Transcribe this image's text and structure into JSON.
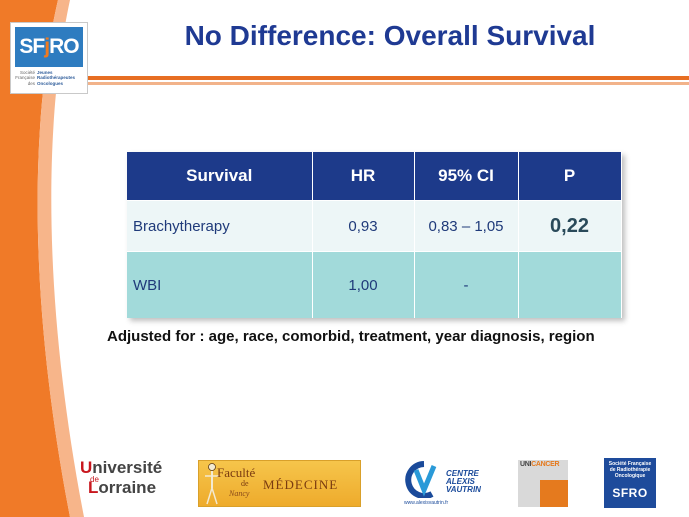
{
  "header": {
    "title": "No Difference: Overall Survival",
    "logo": {
      "name": "SFjRO",
      "prefix": "SF",
      "j": "j",
      "suffix": "RO",
      "sub_left": [
        "Société",
        "Française",
        "des"
      ],
      "sub_right": [
        "Jeunes",
        "Radiothérapeutes",
        "Oncologues"
      ]
    }
  },
  "table": {
    "headers": [
      "Survival",
      "HR",
      "95% CI",
      "P"
    ],
    "rows": [
      {
        "label": "Brachytherapy",
        "hr": "0,93",
        "ci": "0,83 – 1,05",
        "p": "0,22"
      },
      {
        "label": "WBI",
        "hr": "1,00",
        "ci": "-",
        "p": ""
      }
    ]
  },
  "note": "Adjusted for : age, race, comorbid, treatment, year diagnosis, region",
  "footer": {
    "universite": {
      "u": "U",
      "l1": "niversité",
      "de": "de",
      "l": "L",
      "l2": "orraine"
    },
    "faculte": {
      "l1": "Faculté",
      "de": "de",
      "l2": "MÉDECINE",
      "city": "Nancy"
    },
    "cav": {
      "l1": "CENTRE",
      "l2": "ALEXIS",
      "l3": "VAUTRIN",
      "url": "www.alexisvautrin.fr"
    },
    "unicancer": {
      "uni": "UNI",
      "cancer": "CANCER"
    },
    "sfro": {
      "sm1": "Société Française",
      "sm2": "de Radiothérapie",
      "sm3": "Oncologique",
      "big": "SFRO"
    }
  },
  "colors": {
    "accent": "#e76e22",
    "title": "#1f3a93",
    "table_header": "#1d3a8a",
    "row_light": "#edf6f7",
    "row_teal": "#a2dada"
  }
}
